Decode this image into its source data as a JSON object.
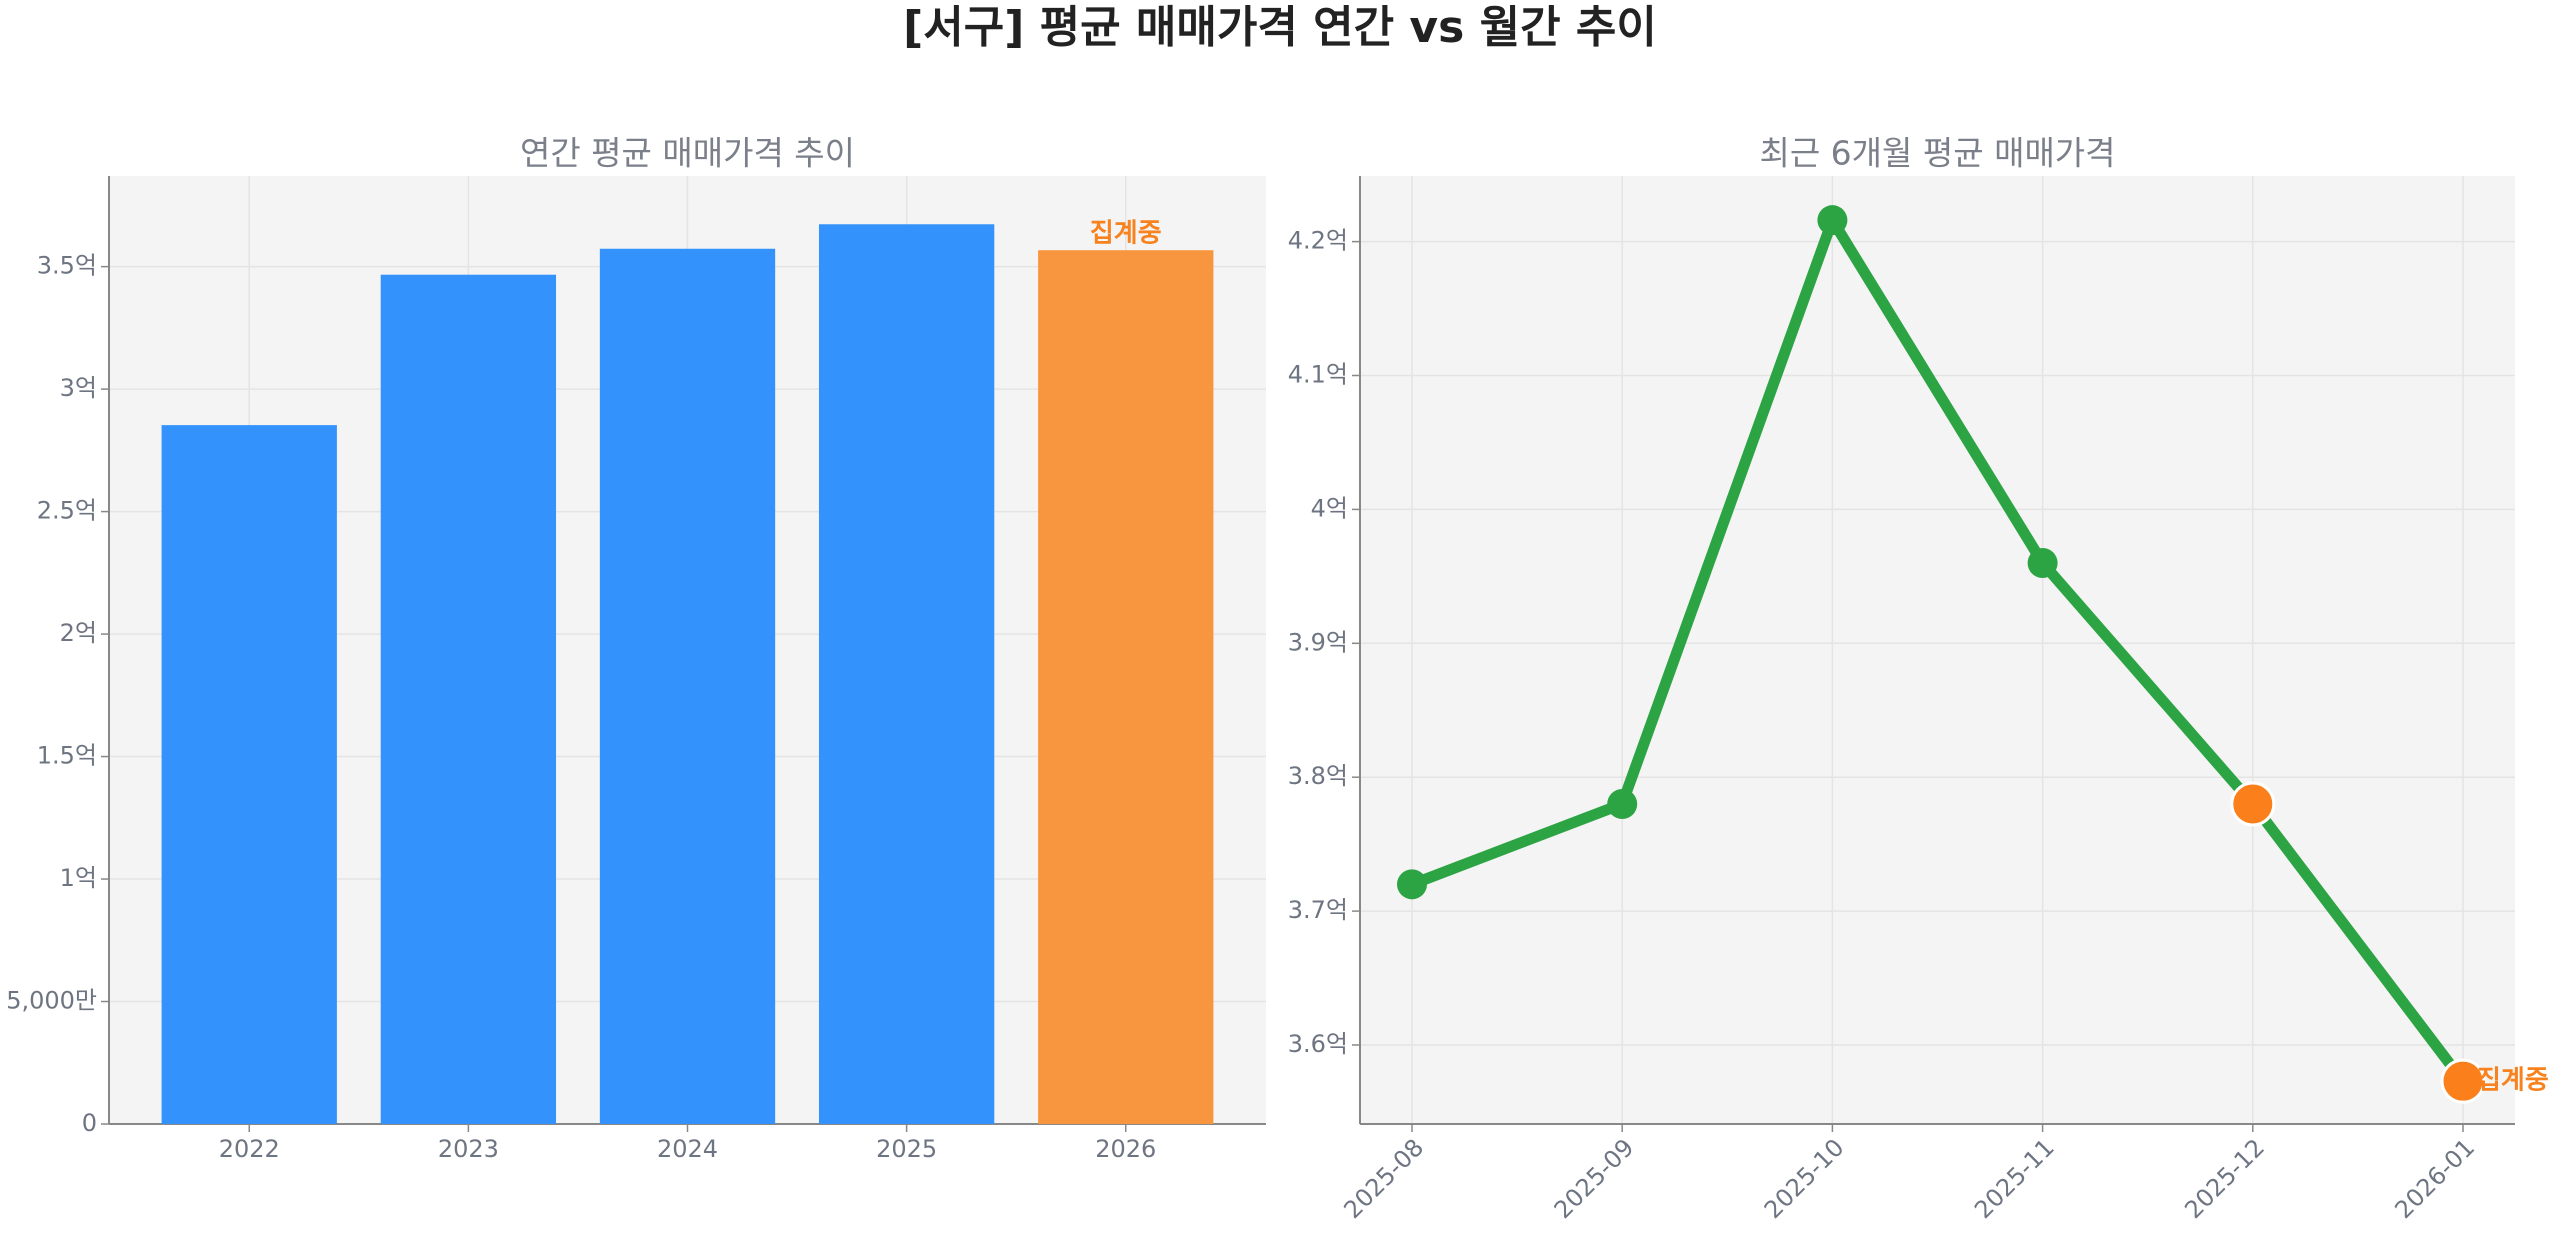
{
  "title": "[서구] 평균 매매가격 연간 vs 월간 추이",
  "chart_data": [
    {
      "type": "bar",
      "title": "연간 평균 매매가격 추이",
      "categories": [
        "2022",
        "2023",
        "2024",
        "2025",
        "2026"
      ],
      "values": [
        2.853,
        3.467,
        3.573,
        3.673,
        3.567
      ],
      "colors": [
        "#3392fb",
        "#3392fb",
        "#3392fb",
        "#3392fb",
        "#f7963e"
      ],
      "ylim": [
        0,
        3.87
      ],
      "yticks": [
        0,
        {
          "value": 0.5,
          "label": "5,000만"
        },
        {
          "value": 1,
          "label": "1억"
        },
        {
          "value": 1.5,
          "label": "1.5억"
        },
        {
          "value": 2,
          "label": "2억"
        },
        {
          "value": 2.5,
          "label": "2.5억"
        },
        {
          "value": 3,
          "label": "3억"
        },
        {
          "value": 3.5,
          "label": "3.5억"
        }
      ],
      "grid": true,
      "annotations": [
        {
          "text": "집계중",
          "category": "2026",
          "color": "#f7821e"
        }
      ]
    },
    {
      "type": "line",
      "title": "최근 6개월 평균 매매가격",
      "categories": [
        "2025-08",
        "2025-09",
        "2025-10",
        "2025-11",
        "2025-12",
        "2026-01"
      ],
      "values": [
        3.72,
        3.78,
        4.216,
        3.96,
        3.78,
        3.573
      ],
      "color": "#2ca444",
      "marker_colors": [
        "#2ca444",
        "#2ca444",
        "#2ca444",
        "#2ca444",
        "#fb7f1a",
        "#fb7f1a"
      ],
      "ylim": [
        3.541,
        4.249
      ],
      "yticks": [
        {
          "value": 3.6,
          "label": "3.6억"
        },
        {
          "value": 3.7,
          "label": "3.7억"
        },
        {
          "value": 3.8,
          "label": "3.8억"
        },
        {
          "value": 3.9,
          "label": "3.9억"
        },
        {
          "value": 4,
          "label": "4억"
        },
        {
          "value": 4.1,
          "label": "4.1억"
        },
        {
          "value": 4.2,
          "label": "4.2억"
        }
      ],
      "grid": true,
      "annotations": [
        {
          "text": "집계중",
          "category": "2026-01",
          "color": "#f7821e"
        }
      ]
    }
  ]
}
